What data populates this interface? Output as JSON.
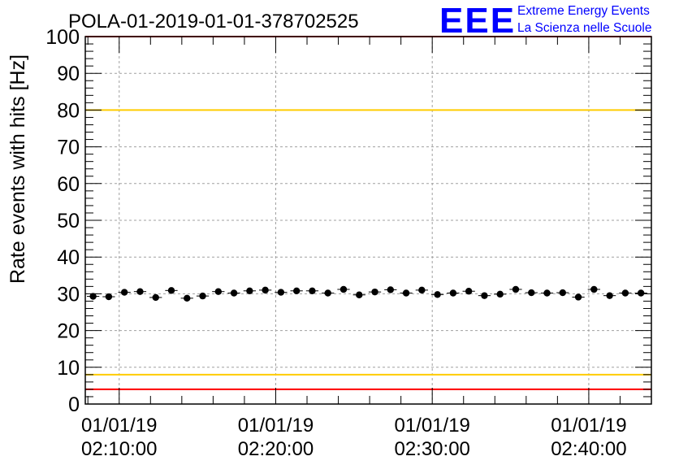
{
  "chart_data": {
    "type": "scatter",
    "title": "POLA-01-2019-01-01-378702525",
    "ylabel": "Rate events with hits [Hz]",
    "xlabel": "",
    "ylim": [
      0,
      100
    ],
    "xlim": [
      "02:07:50",
      "02:44:00"
    ],
    "yticks": [
      0,
      10,
      20,
      30,
      40,
      50,
      60,
      70,
      80,
      90,
      100
    ],
    "x_ticks": [
      {
        "time": "02:10:00",
        "date_label": "01/01/19",
        "time_label": "02:10:00"
      },
      {
        "time": "02:20:00",
        "date_label": "01/01/19",
        "time_label": "02:20:00"
      },
      {
        "time": "02:30:00",
        "date_label": "01/01/19",
        "time_label": "02:30:00"
      },
      {
        "time": "02:40:00",
        "date_label": "01/01/19",
        "time_label": "02:40:00"
      }
    ],
    "grid": true,
    "reference_lines": [
      {
        "y": 100,
        "color": "#ff0000"
      },
      {
        "y": 80,
        "color": "#ffcc00"
      },
      {
        "y": 8,
        "color": "#ffcc00"
      },
      {
        "y": 4,
        "color": "#ff0000"
      }
    ],
    "series": [
      {
        "marker_color": "#000000",
        "x": [
          "02:08:20",
          "02:09:20",
          "02:10:20",
          "02:11:20",
          "02:12:20",
          "02:13:20",
          "02:14:20",
          "02:15:20",
          "02:16:20",
          "02:17:20",
          "02:18:20",
          "02:19:20",
          "02:20:20",
          "02:21:20",
          "02:22:20",
          "02:23:20",
          "02:24:20",
          "02:25:20",
          "02:26:20",
          "02:27:20",
          "02:28:20",
          "02:29:20",
          "02:30:20",
          "02:31:20",
          "02:32:20",
          "02:33:20",
          "02:34:20",
          "02:35:20",
          "02:36:20",
          "02:37:20",
          "02:38:20",
          "02:39:20",
          "02:40:20",
          "02:41:20",
          "02:42:20",
          "02:43:20"
        ],
        "values": [
          29.3,
          29.2,
          30.4,
          30.6,
          29.0,
          30.9,
          28.8,
          29.4,
          30.6,
          30.2,
          30.8,
          31.0,
          30.4,
          30.8,
          30.8,
          30.2,
          31.2,
          29.7,
          30.5,
          31.1,
          30.2,
          31.0,
          29.8,
          30.2,
          30.7,
          29.5,
          29.9,
          31.2,
          30.3,
          30.2,
          30.3,
          29.1,
          31.2,
          29.5,
          30.2,
          30.2
        ],
        "errors": [
          0.6,
          0.6,
          0.6,
          0.6,
          0.6,
          0.6,
          0.6,
          0.6,
          0.6,
          0.6,
          0.6,
          0.6,
          0.6,
          0.6,
          0.6,
          0.6,
          0.6,
          0.6,
          0.6,
          0.6,
          0.6,
          0.6,
          0.6,
          0.6,
          0.6,
          0.6,
          0.6,
          0.6,
          0.6,
          0.6,
          0.6,
          0.6,
          0.6,
          0.6,
          0.6,
          0.6
        ]
      }
    ]
  },
  "logo": {
    "mark": "EEE",
    "line1": "Extreme Energy Events",
    "line2": "La Scienza nelle Scuole",
    "color": "#0000ff"
  }
}
